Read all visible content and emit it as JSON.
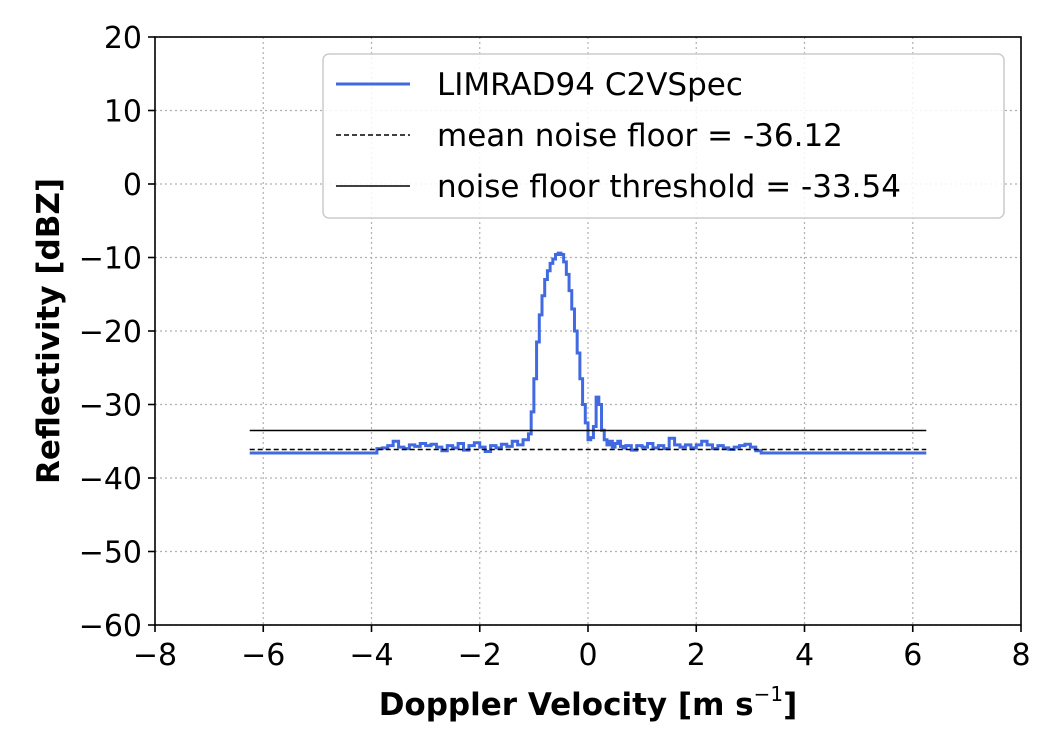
{
  "chart_data": {
    "type": "line",
    "title": "",
    "xlabel": "Doppler Velocity [m s",
    "xlabel_sup": "−1",
    "xlabel_end": "]",
    "ylabel": "Reflectivity [dBZ]",
    "xlim": [
      -8,
      8
    ],
    "ylim": [
      -60,
      20
    ],
    "xticks": [
      -8,
      -6,
      -4,
      -2,
      0,
      2,
      4,
      6,
      8
    ],
    "xtick_labels": [
      "−8",
      "−6",
      "−4",
      "−2",
      "0",
      "2",
      "4",
      "6",
      "8"
    ],
    "yticks": [
      -60,
      -50,
      -40,
      -30,
      -20,
      -10,
      0,
      10,
      20
    ],
    "ytick_labels": [
      "−60",
      "−50",
      "−40",
      "−30",
      "−20",
      "−10",
      "0",
      "10",
      "20"
    ],
    "grid": true,
    "legend_position": "upper-right",
    "series": [
      {
        "name": "LIMRAD94 C2VSpec",
        "style": "step",
        "color": "#4169e1",
        "x": [
          -6.25,
          -3.9,
          -3.8,
          -3.7,
          -3.6,
          -3.5,
          -3.4,
          -3.3,
          -3.2,
          -3.1,
          -3.0,
          -2.9,
          -2.8,
          -2.7,
          -2.6,
          -2.5,
          -2.4,
          -2.3,
          -2.2,
          -2.1,
          -2.0,
          -1.9,
          -1.8,
          -1.7,
          -1.6,
          -1.5,
          -1.4,
          -1.3,
          -1.2,
          -1.1,
          -1.05,
          -1.0,
          -0.95,
          -0.9,
          -0.85,
          -0.8,
          -0.75,
          -0.7,
          -0.65,
          -0.6,
          -0.55,
          -0.5,
          -0.45,
          -0.4,
          -0.35,
          -0.3,
          -0.25,
          -0.2,
          -0.15,
          -0.1,
          -0.05,
          0.0,
          0.05,
          0.1,
          0.15,
          0.2,
          0.25,
          0.3,
          0.35,
          0.4,
          0.45,
          0.5,
          0.55,
          0.6,
          0.65,
          0.7,
          0.8,
          0.9,
          1.0,
          1.1,
          1.2,
          1.3,
          1.4,
          1.5,
          1.6,
          1.7,
          1.8,
          1.9,
          2.0,
          2.1,
          2.2,
          2.3,
          2.4,
          2.5,
          2.6,
          2.7,
          2.8,
          2.9,
          3.0,
          3.1,
          3.2,
          3.3,
          3.4,
          3.5,
          3.6,
          3.7,
          3.8,
          6.25
        ],
        "y": [
          -36.6,
          -36.0,
          -35.9,
          -35.6,
          -35.0,
          -35.8,
          -36.0,
          -35.5,
          -35.7,
          -35.3,
          -35.6,
          -35.4,
          -35.8,
          -36.3,
          -35.6,
          -35.9,
          -35.3,
          -36.2,
          -35.6,
          -35.2,
          -35.8,
          -36.4,
          -35.6,
          -35.9,
          -35.4,
          -35.7,
          -35.0,
          -35.5,
          -34.8,
          -34.0,
          -31.0,
          -26.5,
          -21.5,
          -17.8,
          -15.2,
          -13.0,
          -11.8,
          -10.8,
          -10.2,
          -9.6,
          -9.4,
          -9.6,
          -10.6,
          -12.3,
          -14.5,
          -17.0,
          -20.0,
          -23.0,
          -26.5,
          -30.0,
          -32.5,
          -34.8,
          -34.5,
          -33.0,
          -29.0,
          -30.0,
          -33.5,
          -34.8,
          -35.5,
          -35.0,
          -35.8,
          -35.3,
          -35.0,
          -35.7,
          -35.9,
          -35.6,
          -36.2,
          -35.6,
          -35.8,
          -35.3,
          -35.9,
          -35.6,
          -36.0,
          -34.6,
          -35.5,
          -35.8,
          -35.5,
          -35.9,
          -35.5,
          -35.0,
          -35.5,
          -36.0,
          -35.6,
          -35.9,
          -36.1,
          -35.8,
          -35.6,
          -35.4,
          -35.8,
          -36.3,
          -36.6,
          -36.6,
          -36.6,
          -36.6,
          -36.6,
          -36.6,
          -36.6,
          -36.6
        ]
      },
      {
        "name": "mean noise floor =  -36.12",
        "style": "dashed",
        "color": "#000000",
        "x": [
          -6.25,
          6.25
        ],
        "y": [
          -36.12,
          -36.12
        ]
      },
      {
        "name": "noise floor threshold =  -33.54",
        "style": "solid-thin",
        "color": "#000000",
        "x": [
          -6.25,
          6.25
        ],
        "y": [
          -33.54,
          -33.54
        ]
      }
    ]
  }
}
